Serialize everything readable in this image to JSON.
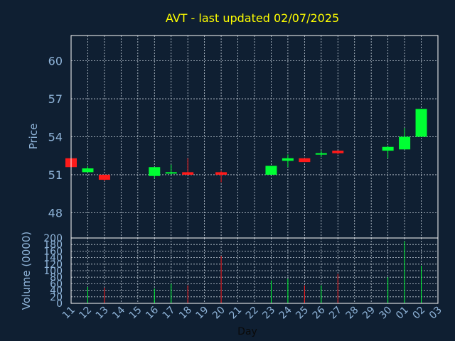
{
  "chart_data": {
    "type": "candlestick",
    "title": "AVT - last updated 02/07/2025",
    "xlabel": "Day",
    "price_panel": {
      "ylabel": "Price",
      "ylim": [
        46,
        62
      ],
      "yticks": [
        48,
        51,
        54,
        57,
        60
      ]
    },
    "volume_panel": {
      "ylabel": "Volume (0000)",
      "ylim": [
        0,
        200
      ],
      "yticks": [
        0,
        20,
        40,
        60,
        80,
        100,
        120,
        140,
        160,
        180,
        200
      ]
    },
    "x_tick_labels": [
      "11",
      "12",
      "13",
      "14",
      "15",
      "16",
      "17",
      "18",
      "19",
      "20",
      "21",
      "22",
      "23",
      "24",
      "25",
      "26",
      "27",
      "28",
      "29",
      "30",
      "01",
      "02",
      "03"
    ],
    "colors": {
      "background": "#0f1f32",
      "title": "#ffff00",
      "axis_text": "#8fb4d9",
      "frame": "#ffffff",
      "grid": "#c8d2dc",
      "up": "#00ff33",
      "down": "#ff1a1a"
    },
    "series": [
      {
        "day": "11",
        "open": 52.3,
        "high": 52.3,
        "low": 51.6,
        "close": 51.6,
        "volume": 0
      },
      {
        "day": "12",
        "open": 51.2,
        "high": 51.7,
        "low": 51.2,
        "close": 51.5,
        "volume": 50
      },
      {
        "day": "13",
        "open": 51.0,
        "high": 51.0,
        "low": 50.5,
        "close": 50.6,
        "volume": 48
      },
      {
        "day": "16",
        "open": 50.9,
        "high": 51.6,
        "low": 50.7,
        "close": 51.6,
        "volume": 45
      },
      {
        "day": "17",
        "open": 51.1,
        "high": 51.8,
        "low": 51.0,
        "close": 51.2,
        "volume": 60
      },
      {
        "day": "18",
        "open": 51.2,
        "high": 52.3,
        "low": 51.0,
        "close": 51.0,
        "volume": 55
      },
      {
        "day": "20",
        "open": 51.2,
        "high": 51.3,
        "low": 50.4,
        "close": 51.0,
        "volume": 145
      },
      {
        "day": "23",
        "open": 51.0,
        "high": 51.7,
        "low": 51.0,
        "close": 51.7,
        "volume": 70
      },
      {
        "day": "24",
        "open": 52.1,
        "high": 52.6,
        "low": 51.6,
        "close": 52.3,
        "volume": 75
      },
      {
        "day": "25",
        "open": 52.3,
        "high": 52.3,
        "low": 52.0,
        "close": 52.0,
        "volume": 55
      },
      {
        "day": "26",
        "open": 52.6,
        "high": 52.9,
        "low": 52.4,
        "close": 52.7,
        "volume": 55
      },
      {
        "day": "27",
        "open": 52.9,
        "high": 52.9,
        "low": 52.6,
        "close": 52.7,
        "volume": 90
      },
      {
        "day": "30",
        "open": 52.9,
        "high": 53.3,
        "low": 52.3,
        "close": 53.2,
        "volume": 80
      },
      {
        "day": "01",
        "open": 53.0,
        "high": 54.7,
        "low": 53.0,
        "close": 54.0,
        "volume": 190
      },
      {
        "day": "02",
        "open": 54.0,
        "high": 56.2,
        "low": 54.0,
        "close": 56.2,
        "volume": 115
      }
    ]
  }
}
